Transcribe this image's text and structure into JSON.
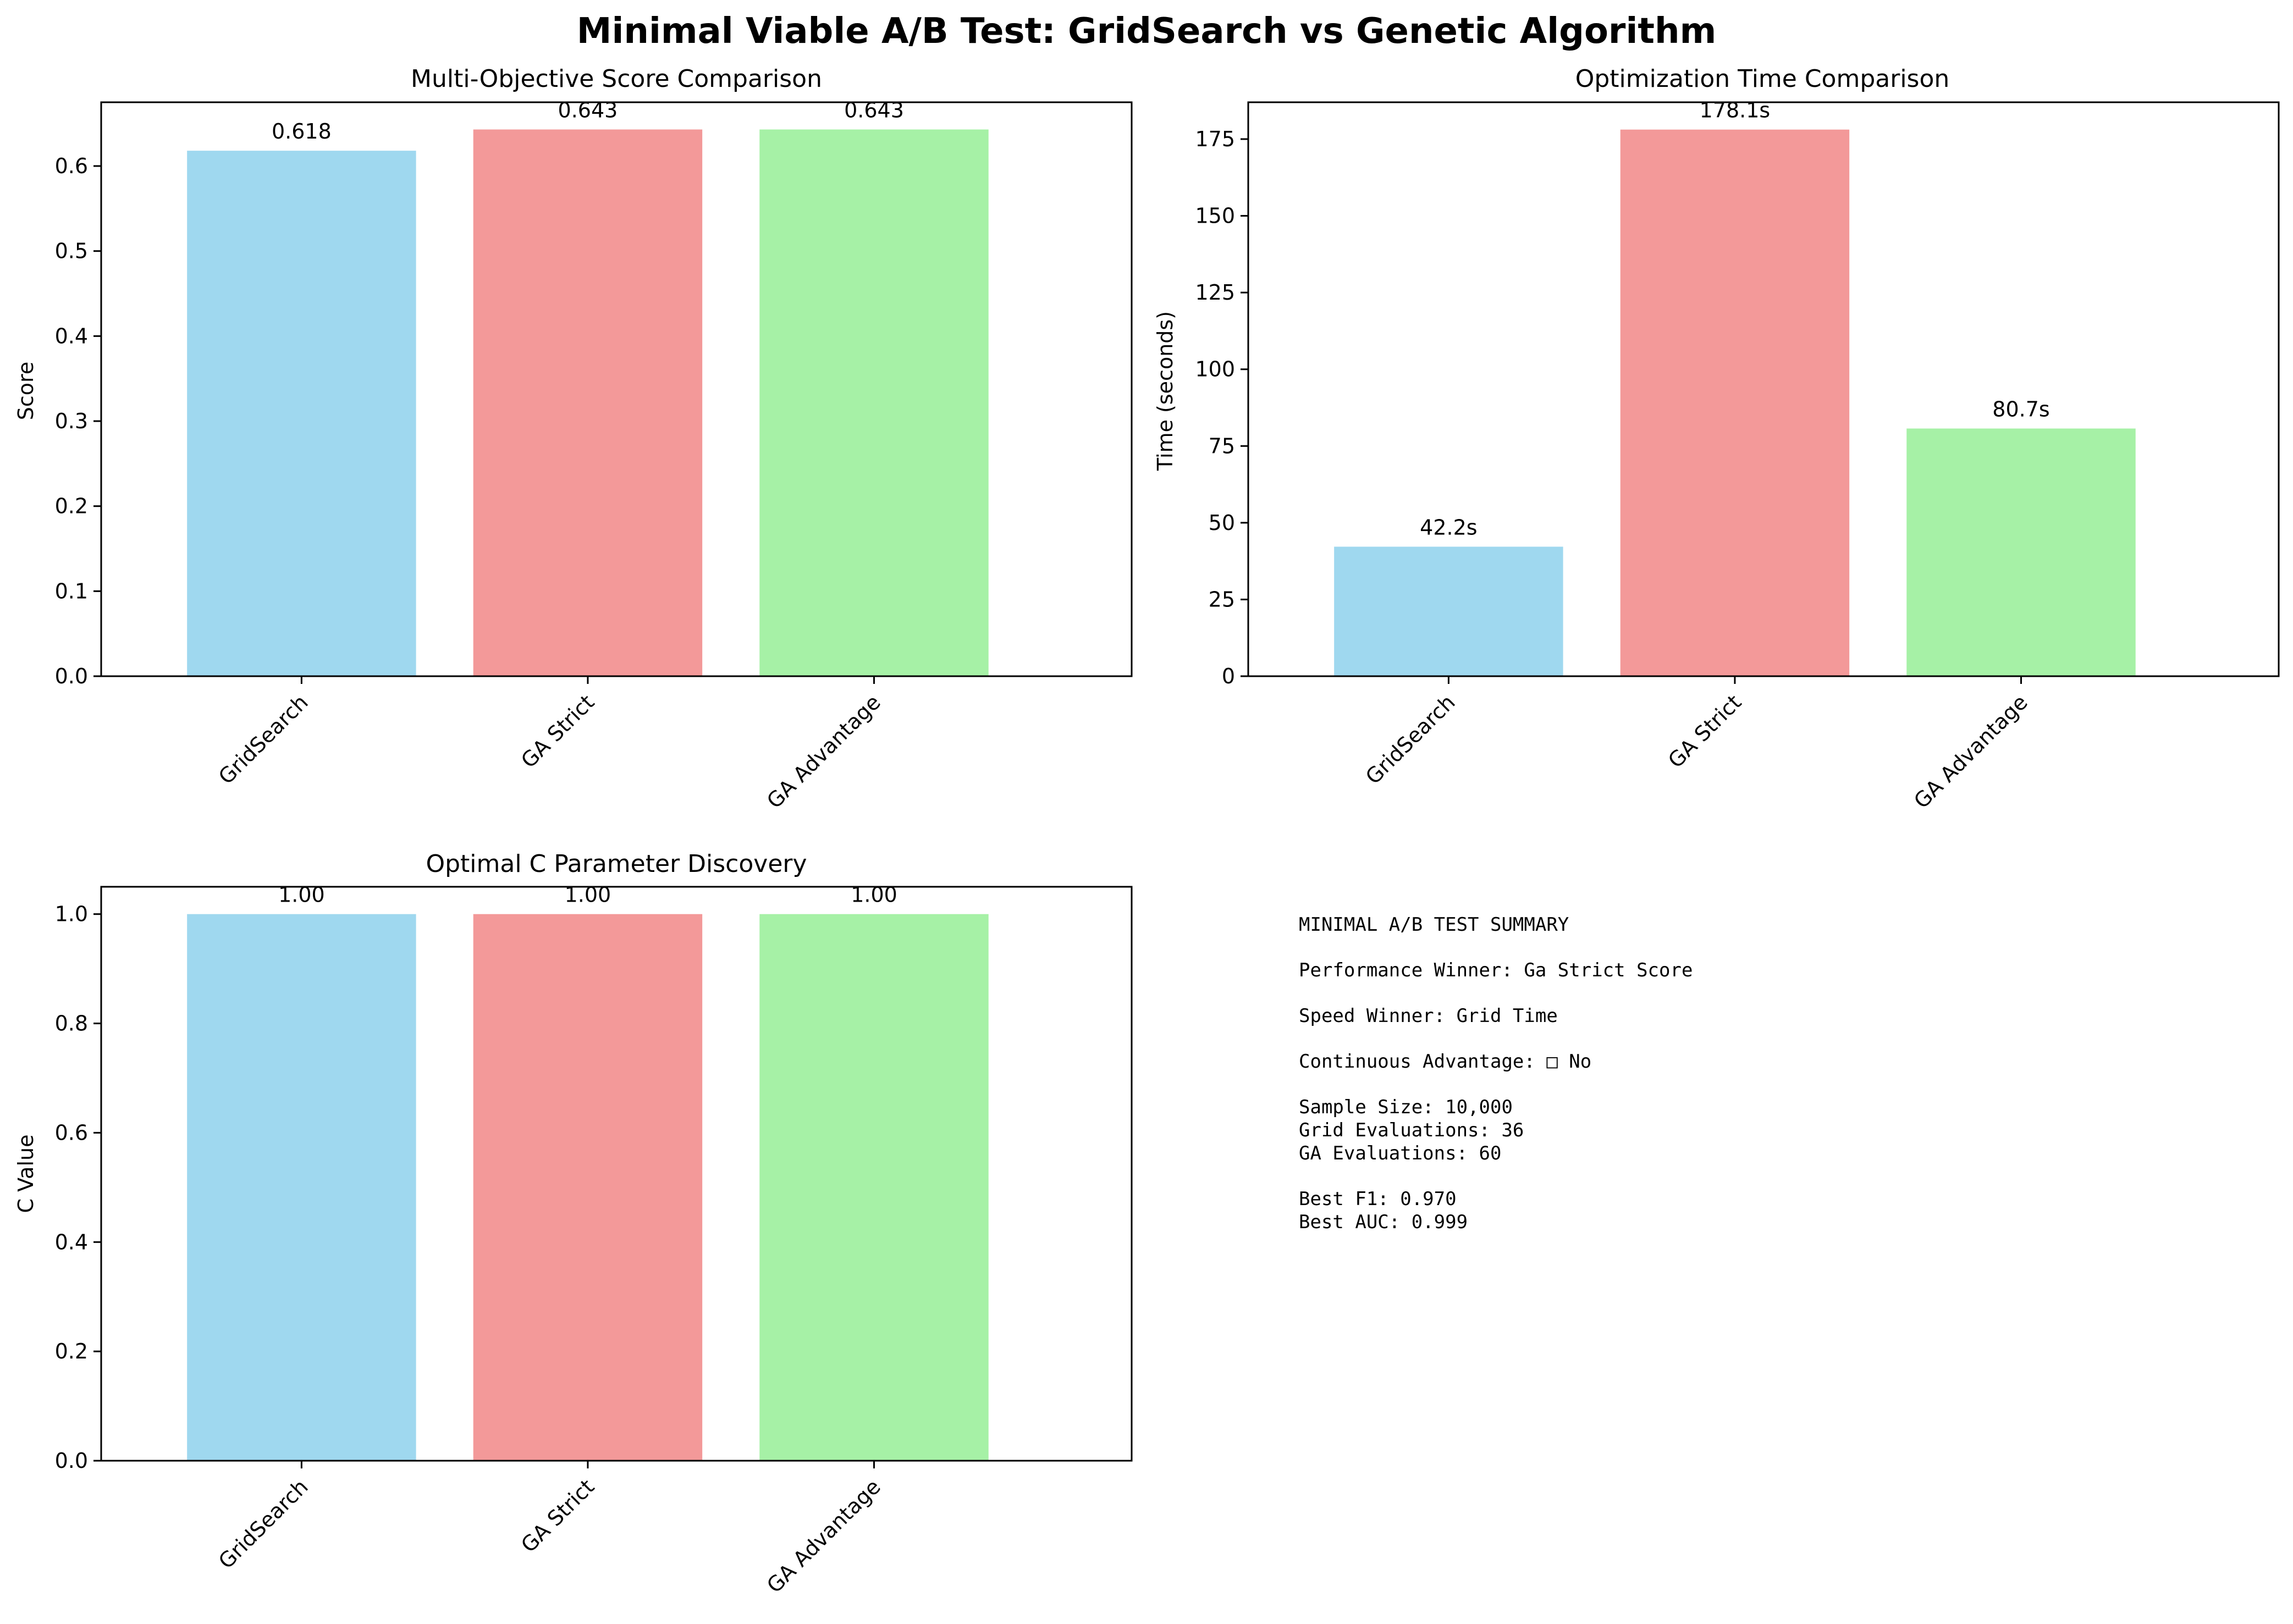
{
  "figure": {
    "title": "Minimal Viable A/B Test: GridSearch vs Genetic Algorithm"
  },
  "colors": {
    "gridsearch": "#87ceeb",
    "ga_strict": "#f08080",
    "ga_advantage": "#90ee90",
    "axis": "#000000"
  },
  "chart_data": [
    {
      "type": "bar",
      "title": "Multi-Objective Score Comparison",
      "xlabel": "",
      "ylabel": "Score",
      "categories": [
        "GridSearch",
        "GA Strict",
        "GA Advantage"
      ],
      "values": [
        0.618,
        0.643,
        0.643
      ],
      "value_labels": [
        "0.618",
        "0.643",
        "0.643"
      ],
      "ylim": [
        0,
        0.675
      ],
      "yticks": [
        0.0,
        0.1,
        0.2,
        0.3,
        0.4,
        0.5,
        0.6
      ],
      "ytick_labels": [
        "0.0",
        "0.1",
        "0.2",
        "0.3",
        "0.4",
        "0.5",
        "0.6"
      ],
      "grid": false,
      "legend": "none"
    },
    {
      "type": "bar",
      "title": "Optimization Time Comparison",
      "xlabel": "",
      "ylabel": "Time (seconds)",
      "categories": [
        "GridSearch",
        "GA Strict",
        "GA Advantage"
      ],
      "values": [
        42.2,
        178.1,
        80.7
      ],
      "value_labels": [
        "42.2s",
        "178.1s",
        "80.7s"
      ],
      "ylim": [
        0,
        187
      ],
      "yticks": [
        0,
        25,
        50,
        75,
        100,
        125,
        150,
        175
      ],
      "ytick_labels": [
        "0",
        "25",
        "50",
        "75",
        "100",
        "125",
        "150",
        "175"
      ],
      "grid": false,
      "legend": "none"
    },
    {
      "type": "bar",
      "title": "Optimal C Parameter Discovery",
      "xlabel": "",
      "ylabel": "C Value",
      "categories": [
        "GridSearch",
        "GA Strict",
        "GA Advantage"
      ],
      "values": [
        1.0,
        1.0,
        1.0
      ],
      "value_labels": [
        "1.00",
        "1.00",
        "1.00"
      ],
      "ylim": [
        0,
        1.05
      ],
      "yticks": [
        0.0,
        0.2,
        0.4,
        0.6,
        0.8,
        1.0
      ],
      "ytick_labels": [
        "0.0",
        "0.2",
        "0.4",
        "0.6",
        "0.8",
        "1.0"
      ],
      "grid": false,
      "legend": "none"
    }
  ],
  "summary": {
    "heading": "MINIMAL A/B TEST SUMMARY",
    "performance_winner": "Performance Winner: Ga Strict Score",
    "speed_winner": "Speed Winner: Grid Time",
    "continuous_advantage": "Continuous Advantage: □ No",
    "sample_size": "Sample Size: 10,000",
    "grid_evaluations": "Grid Evaluations: 36",
    "ga_evaluations": "GA Evaluations: 60",
    "best_f1": "Best F1: 0.970",
    "best_auc": "Best AUC: 0.999"
  }
}
